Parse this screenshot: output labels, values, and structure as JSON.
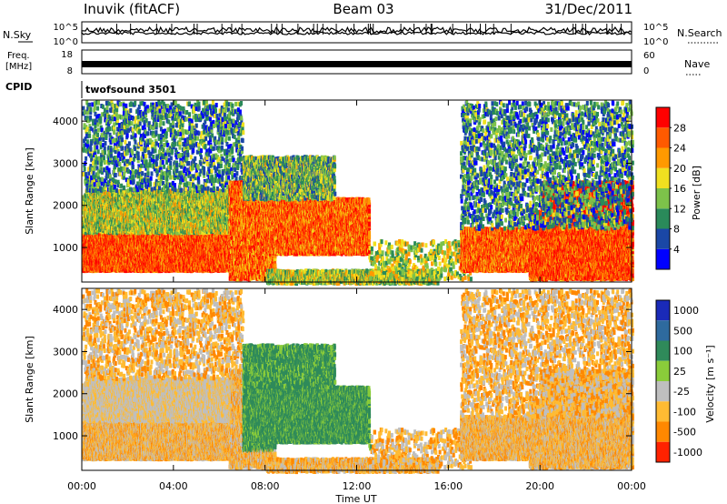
{
  "header": {
    "station": "Inuvik (fitACF)",
    "beam": "Beam 03",
    "date": "31/Dec/2011"
  },
  "noise_panel": {
    "left_label": "N.Sky",
    "right_label": "N.Search",
    "left_ticks": [
      "10^5",
      "10^0"
    ],
    "right_ticks": [
      "10^5",
      "10^0"
    ]
  },
  "freq_panel": {
    "left_label_1": "Freq.",
    "left_label_2": "[MHz]",
    "right_label": "Nave",
    "left_ticks": [
      "18",
      "8"
    ],
    "right_ticks": [
      "60",
      "0"
    ]
  },
  "cpid": {
    "label": "CPID",
    "value": "twofsound 3501"
  },
  "power_panel": {
    "ylabel": "Slant Range [km]",
    "colorbar_label": "Power [dB]",
    "y_ticks": [
      "4000",
      "3000",
      "2000",
      "1000"
    ],
    "colorbar_ticks": [
      "28",
      "24",
      "20",
      "16",
      "12",
      "8",
      "4"
    ],
    "colors": [
      "#0000ff",
      "#1a47a6",
      "#2a8a5a",
      "#7dc24a",
      "#f0e020",
      "#ff9900",
      "#ff5a00",
      "#ff0000"
    ]
  },
  "velocity_panel": {
    "ylabel": "Slant Range [km]",
    "colorbar_label": "Velocity [m s⁻¹]",
    "y_ticks": [
      "4000",
      "3000",
      "2000",
      "1000"
    ],
    "colorbar_ticks": [
      "1000",
      "500",
      "100",
      "25",
      "-25",
      "-100",
      "-500",
      "-1000"
    ],
    "colors": [
      "#1a2ab8",
      "#2e6a9e",
      "#2f8a5a",
      "#8acc3a",
      "#bfbfbf",
      "#ffbb33",
      "#ff8800",
      "#ff2200"
    ]
  },
  "x_axis": {
    "label": "Time UT",
    "ticks": [
      "00:00",
      "04:00",
      "08:00",
      "12:00",
      "16:00",
      "20:00",
      "00:00"
    ]
  },
  "chart_data": {
    "type": "heatmap",
    "x_range_hours": [
      0,
      24
    ],
    "y_range_km": [
      180,
      4500
    ],
    "panels": [
      "Power [dB]",
      "Velocity [m s⁻¹]"
    ]
  }
}
